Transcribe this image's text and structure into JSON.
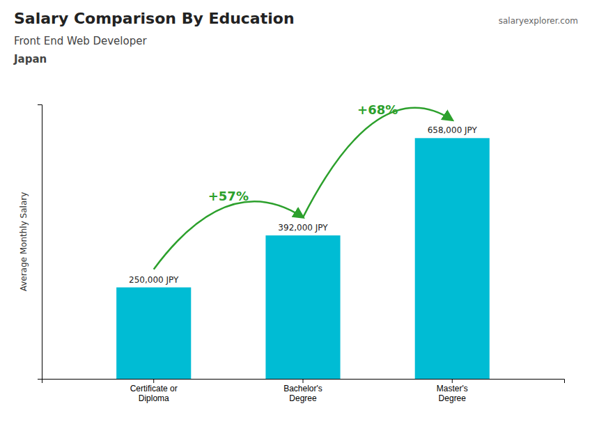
{
  "chart_data": {
    "type": "bar",
    "title": "Salary Comparison By Education",
    "subtitle": "Front End Web Developer",
    "country": "Japan",
    "source": "salaryexplorer.com",
    "y_label": "Average Monthly Salary",
    "categories": [
      "Certificate or\nDiploma",
      "Bachelor's\nDegree",
      "Master's\nDegree"
    ],
    "values": [
      250000,
      392000,
      658000
    ],
    "value_labels": [
      "250,000 JPY",
      "392,000 JPY",
      "658,000 JPY"
    ],
    "data_labels": true,
    "annotations": [
      "+57%",
      "+68%"
    ],
    "color": "#00bcd4",
    "ylim": [
      0,
      750000
    ],
    "tick_labels": "x",
    "grid": false
  }
}
